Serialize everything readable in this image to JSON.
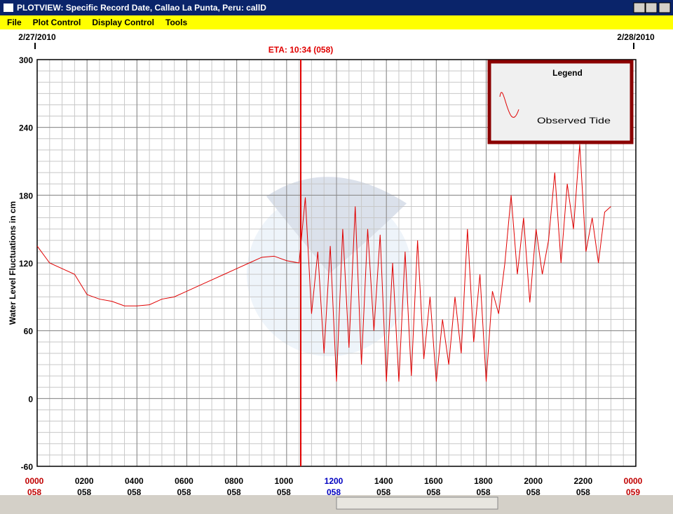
{
  "window": {
    "title": "PLOTVIEW: Specific Record Date, Callao La Punta, Peru: callD",
    "menu": [
      "File",
      "Plot Control",
      "Display Control",
      "Tools"
    ]
  },
  "chart_data": {
    "type": "line",
    "ylabel": "Water Level Fluctuations in cm",
    "xlim": [
      0,
      24
    ],
    "ylim": [
      -60,
      300
    ],
    "yticks": [
      -60,
      0,
      60,
      120,
      180,
      240,
      300
    ],
    "yminor_step": 10,
    "xminor_step": 0.5,
    "grid": true,
    "xticks": [
      {
        "value": 0,
        "label": "0000"
      },
      {
        "value": 2,
        "label": "0200"
      },
      {
        "value": 4,
        "label": "0400"
      },
      {
        "value": 6,
        "label": "0600"
      },
      {
        "value": 8,
        "label": "0800"
      },
      {
        "value": 10,
        "label": "1000"
      },
      {
        "value": 12,
        "label": "1200"
      },
      {
        "value": 14,
        "label": "1400"
      },
      {
        "value": 16,
        "label": "1600"
      },
      {
        "value": 18,
        "label": "1800"
      },
      {
        "value": 20,
        "label": "2000"
      },
      {
        "value": 22,
        "label": "2200"
      },
      {
        "value": 24,
        "label": "0000"
      }
    ],
    "xtick_days": [
      "058",
      "058",
      "058",
      "058",
      "058",
      "058",
      "058",
      "058",
      "058",
      "058",
      "058",
      "058",
      "059"
    ],
    "xtick_colors": [
      "#c00000",
      "#000000",
      "#000000",
      "#000000",
      "#000000",
      "#000000",
      "#0000c0",
      "#000000",
      "#000000",
      "#000000",
      "#000000",
      "#000000",
      "#c00000"
    ],
    "date_labels": [
      {
        "value": 0,
        "label": "2/27/2010"
      },
      {
        "value": 24,
        "label": "2/28/2010"
      }
    ],
    "eta": {
      "x": 10.567,
      "label": "ETA: 10:34 (058)",
      "color": "#e00000"
    },
    "legend": {
      "title": "Legend",
      "position": "top-right"
    },
    "series": [
      {
        "name": "Observed Tide",
        "color": "#e00000",
        "x": [
          0,
          0.5,
          1,
          1.5,
          2,
          2.5,
          3,
          3.5,
          4,
          4.5,
          5,
          5.5,
          6,
          6.5,
          7,
          7.5,
          8,
          8.5,
          9,
          9.5,
          10,
          10.5,
          10.75,
          11,
          11.25,
          11.5,
          11.75,
          12,
          12.25,
          12.5,
          12.75,
          13,
          13.25,
          13.5,
          13.75,
          14,
          14.25,
          14.5,
          14.75,
          15,
          15.25,
          15.5,
          15.75,
          16,
          16.25,
          16.5,
          16.75,
          17,
          17.25,
          17.5,
          17.75,
          18,
          18.25,
          18.5,
          18.75,
          19,
          19.25,
          19.5,
          19.75,
          20,
          20.25,
          20.5,
          20.75,
          21,
          21.25,
          21.5,
          21.75,
          22,
          22.25,
          22.5,
          22.75,
          23
        ],
        "values": [
          135,
          120,
          115,
          110,
          92,
          88,
          86,
          82,
          82,
          83,
          88,
          90,
          95,
          100,
          105,
          110,
          115,
          120,
          125,
          126,
          122,
          120,
          178,
          75,
          130,
          40,
          135,
          15,
          150,
          45,
          170,
          30,
          150,
          60,
          145,
          15,
          120,
          15,
          130,
          20,
          140,
          35,
          90,
          15,
          70,
          30,
          90,
          40,
          150,
          50,
          110,
          15,
          95,
          75,
          120,
          180,
          110,
          160,
          85,
          150,
          110,
          140,
          200,
          120,
          190,
          150,
          225,
          130,
          160,
          120,
          165,
          170
        ]
      }
    ]
  }
}
